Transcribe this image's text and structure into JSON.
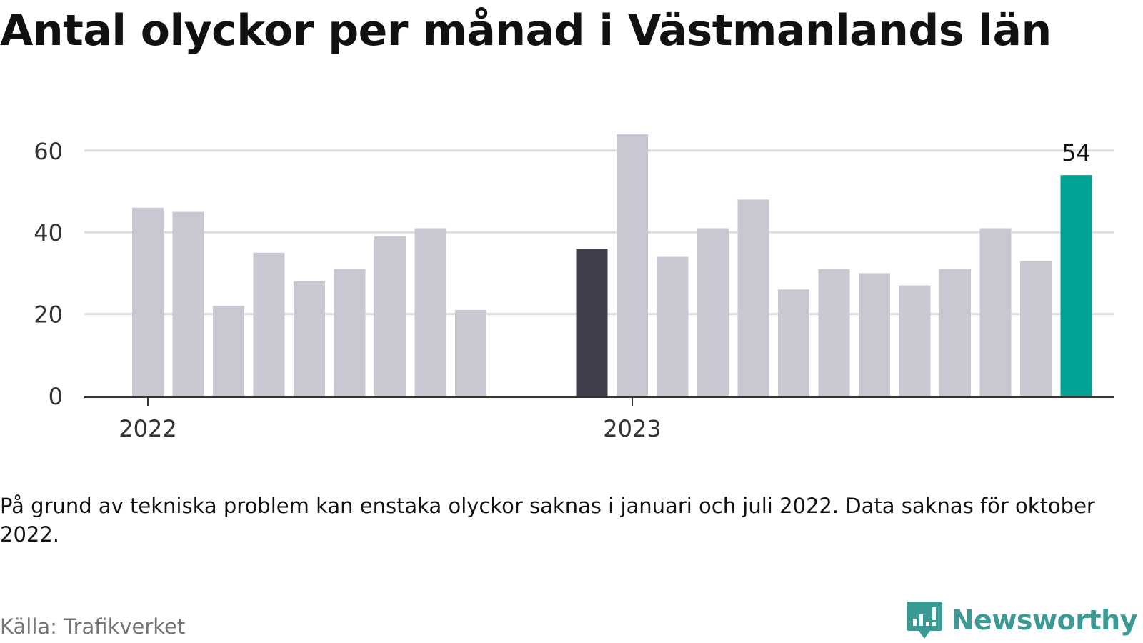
{
  "title": "Antal olyckor per månad i Västmanlands län",
  "note": "På grund av tekniska problem kan enstaka olyckor saknas i januari och juli 2022. Data saknas för oktober 2022.",
  "source": "Källa: Trafikverket",
  "brand": {
    "name": "Newsworthy",
    "icon": "newsworthy-logo-icon",
    "color": "#3b9a93"
  },
  "colors": {
    "bar": "#c8c7d2",
    "highlight_start": "#403e4b",
    "highlight_last": "#00a497",
    "grid": "#dddddd",
    "axis": "#333333"
  },
  "chart_data": {
    "type": "bar",
    "title": "Antal olyckor per månad i Västmanlands län",
    "xlabel": "",
    "ylabel": "",
    "ylim": [
      0,
      64
    ],
    "yticks": [
      0,
      20,
      40,
      60
    ],
    "grid": true,
    "x_tick_labels": [
      {
        "label": "2022",
        "category": "2022-01"
      },
      {
        "label": "2023",
        "category": "2023-01"
      }
    ],
    "categories": [
      "2022-01",
      "2022-02",
      "2022-03",
      "2022-04",
      "2022-05",
      "2022-06",
      "2022-07",
      "2022-08",
      "2022-09",
      "2022-10",
      "2022-11",
      "2022-12",
      "2023-01",
      "2023-02",
      "2023-03",
      "2023-04",
      "2023-05",
      "2023-06",
      "2023-07",
      "2023-08",
      "2023-09",
      "2023-10",
      "2023-11",
      "2023-12"
    ],
    "values": [
      46,
      45,
      22,
      35,
      28,
      31,
      39,
      41,
      21,
      null,
      null,
      36,
      64,
      34,
      41,
      48,
      26,
      31,
      30,
      27,
      31,
      41,
      33,
      54
    ],
    "highlight": [
      {
        "category": "2022-12",
        "color": "#403e4b"
      },
      {
        "category": "2023-12",
        "color": "#00a497",
        "label": "54"
      }
    ]
  }
}
